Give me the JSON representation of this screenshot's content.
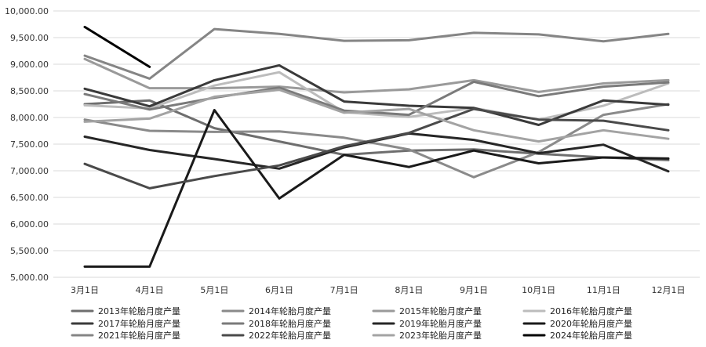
{
  "chart_data": {
    "type": "line",
    "title": "",
    "xlabel": "",
    "ylabel": "",
    "categories": [
      "3月1日",
      "4月1日",
      "5月1日",
      "6月1日",
      "7月1日",
      "8月1日",
      "9月1日",
      "10月1日",
      "11月1日",
      "12月1日"
    ],
    "ylim": [
      5000,
      10000
    ],
    "yticks": [
      5000,
      5500,
      6000,
      6500,
      7000,
      7500,
      8000,
      8500,
      9000,
      9500,
      10000
    ],
    "ytick_labels": [
      "5,000.00",
      "5,500.00",
      "6,000.00",
      "6,500.00",
      "7,000.00",
      "7,500.00",
      "8,000.00",
      "8,500.00",
      "9,000.00",
      "9,500.00",
      "10,000.00"
    ],
    "grid": true,
    "legend_position": "bottom",
    "series": [
      {
        "name": "2013年轮胎月度产量",
        "color": "#6e6e6e",
        "values": [
          8250,
          8320,
          7800,
          7550,
          7300,
          7380,
          7400,
          7320,
          7250,
          7200
        ]
      },
      {
        "name": "2014年轮胎月度产量",
        "color": "#8a8a8a",
        "values": [
          7960,
          7750,
          7730,
          7740,
          7620,
          7400,
          6880,
          7350,
          8050,
          8250
        ]
      },
      {
        "name": "2015年轮胎月度产量",
        "color": "#9a9a9a",
        "values": [
          9100,
          8550,
          8550,
          8580,
          8470,
          8530,
          8700,
          8480,
          8640,
          8700
        ]
      },
      {
        "name": "2016年轮胎月度产量",
        "color": "#bcbcbc",
        "values": [
          8230,
          8170,
          8600,
          8850,
          8100,
          8010,
          8180,
          7960,
          8220,
          8640
        ]
      },
      {
        "name": "2017年轮胎月度产量",
        "color": "#3a3a3a",
        "values": [
          8540,
          8210,
          8700,
          8980,
          8300,
          8220,
          8180,
          7860,
          8320,
          8240
        ]
      },
      {
        "name": "2018年轮胎月度产量",
        "color": "#7a7a7a",
        "values": [
          8440,
          8150,
          8370,
          8560,
          8130,
          8050,
          8670,
          8400,
          8580,
          8660
        ]
      },
      {
        "name": "2019年轮胎月度产量",
        "color": "#262626",
        "values": [
          7640,
          7390,
          7220,
          7040,
          7440,
          7700,
          7580,
          7330,
          7490,
          6990
        ]
      },
      {
        "name": "2020年轮胎月度产量",
        "color": "#1a1a1a",
        "values": [
          5200,
          5200,
          8140,
          6480,
          7300,
          7070,
          7380,
          7140,
          7250,
          7230
        ]
      },
      {
        "name": "2021年轮胎月度产量",
        "color": "#858585",
        "values": [
          9160,
          8730,
          9660,
          9570,
          9440,
          9450,
          9590,
          9560,
          9430,
          9570
        ]
      },
      {
        "name": "2022年轮胎月度产量",
        "color": "#4a4a4a",
        "values": [
          7130,
          6670,
          6900,
          7100,
          7460,
          7710,
          8160,
          7960,
          7940,
          7760
        ]
      },
      {
        "name": "2023年轮胎月度产量",
        "color": "#a3a3a3",
        "values": [
          7920,
          7980,
          8390,
          8520,
          8090,
          8160,
          7760,
          7550,
          7760,
          7600
        ]
      },
      {
        "name": "2024年轮胎月度产量",
        "color": "#000000",
        "values": [
          9700,
          8950,
          null,
          null,
          null,
          null,
          null,
          null,
          null,
          null
        ]
      }
    ]
  }
}
